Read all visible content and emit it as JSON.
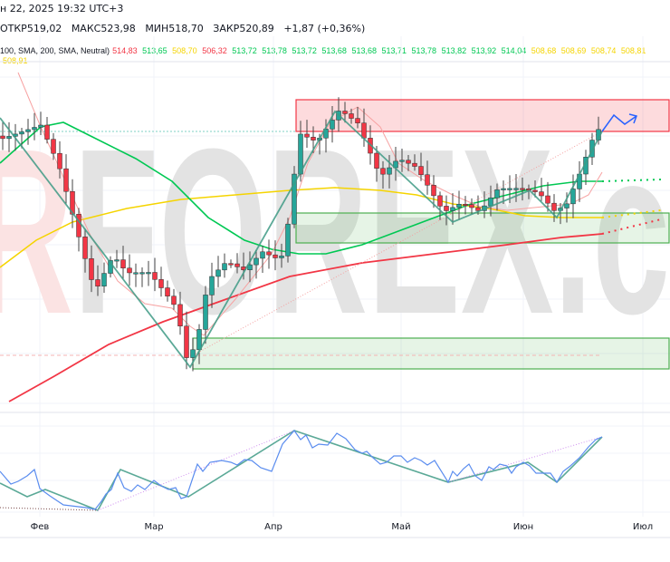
{
  "header": {
    "datetime": "н 22, 2025 19:32 UTC+3",
    "ohlc": {
      "open": "ОТКР519,02",
      "high": "МАКС523,98",
      "low": "МИН518,70",
      "close": "ЗАКР520,89",
      "change": "+1,87 (+0,36%)"
    },
    "indicator_label": "100, SMA, 200, SMA, Neutral)",
    "indicator_values": [
      {
        "v": "514,83",
        "c": "#f23645"
      },
      {
        "v": "513,65",
        "c": "#00c853"
      },
      {
        "v": "508,70",
        "c": "#f5d400"
      },
      {
        "v": "506,32",
        "c": "#f23645"
      },
      {
        "v": "513,72",
        "c": "#00c853"
      },
      {
        "v": "513,78",
        "c": "#00c853"
      },
      {
        "v": "513,72",
        "c": "#00c853"
      },
      {
        "v": "513,68",
        "c": "#00c853"
      },
      {
        "v": "513,68",
        "c": "#00c853"
      },
      {
        "v": "513,71",
        "c": "#00c853"
      },
      {
        "v": "513,78",
        "c": "#00c853"
      },
      {
        "v": "513,82",
        "c": "#00c853"
      },
      {
        "v": "513,92",
        "c": "#00c853"
      },
      {
        "v": "514,04",
        "c": "#00c853"
      },
      {
        "v": "508,68",
        "c": "#f5d400"
      },
      {
        "v": "508,69",
        "c": "#f5d400"
      },
      {
        "v": "508,74",
        "c": "#f5d400"
      },
      {
        "v": "508,81",
        "c": "#f5d400"
      },
      {
        "v": "508,91",
        "c": "#f5d400"
      }
    ]
  },
  "watermark": "RFOREX.c",
  "time_axis": [
    "Фев",
    "Мар",
    "Апр",
    "Май",
    "Июн",
    "Июл"
  ],
  "colors": {
    "bull": "#26a69a",
    "bear": "#f23645",
    "sma_fast": "#f7a1a1",
    "sma_green": "#00c853",
    "sma_yellow": "#f5d400",
    "sma_200": "#f23645",
    "zigzag": "#3e9a85",
    "forecast": "#2962ff",
    "oscillator": "#5b8def"
  }
}
